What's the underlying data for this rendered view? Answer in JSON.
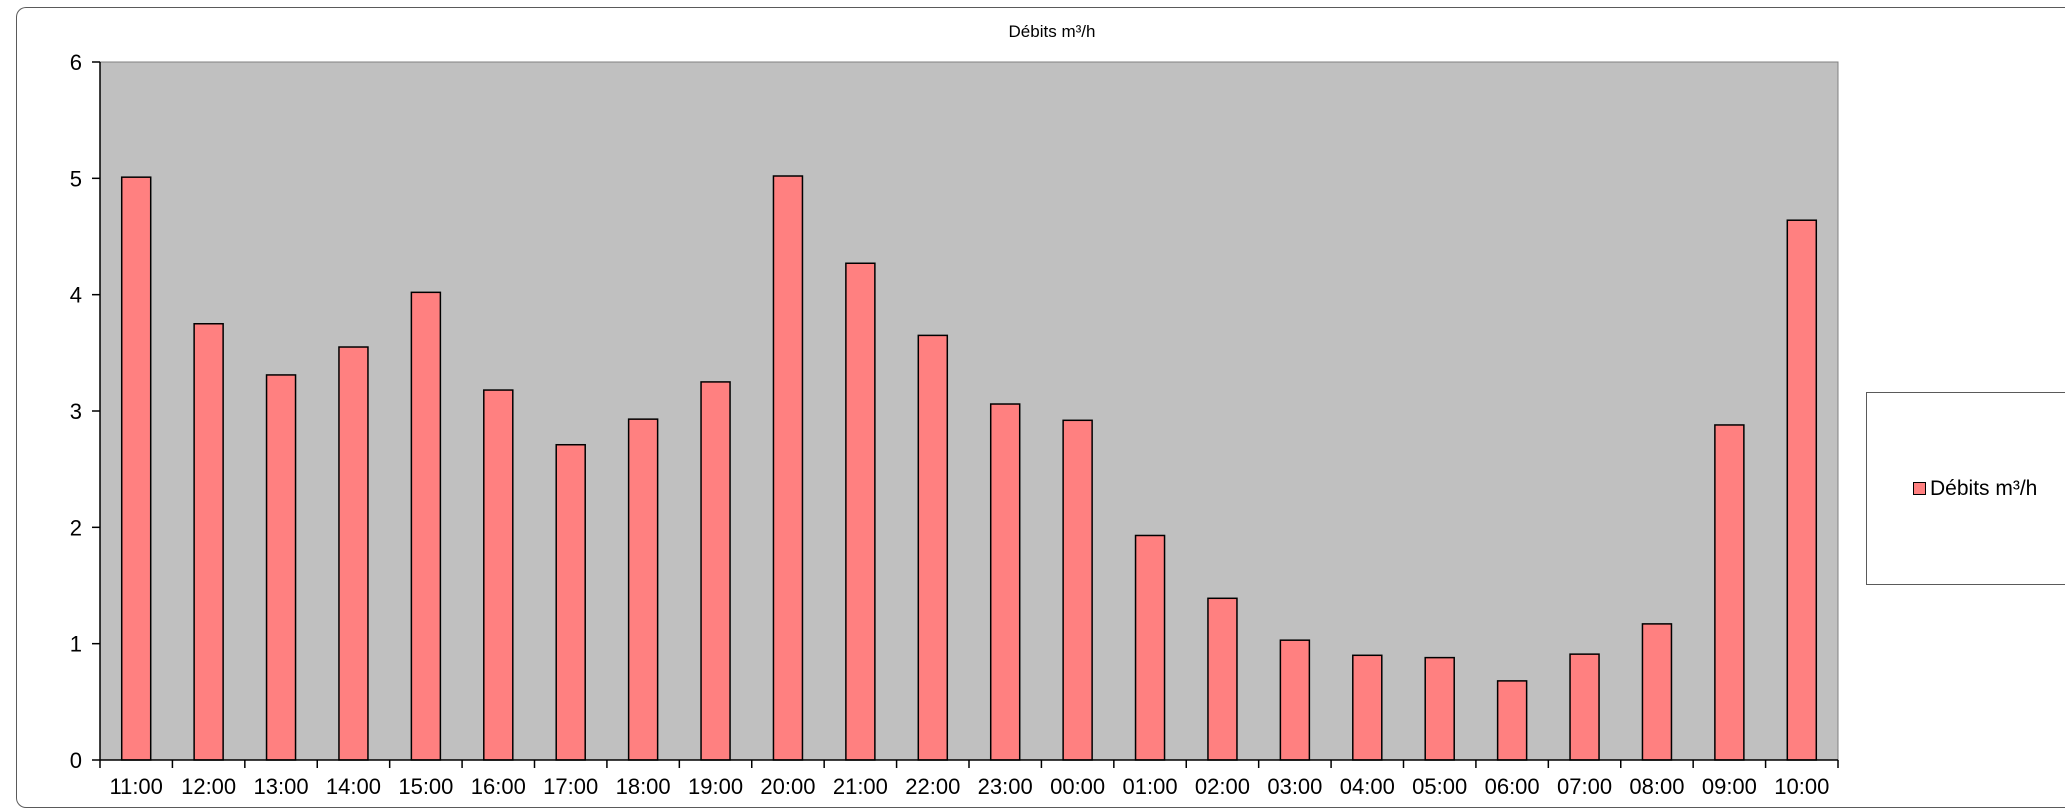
{
  "colors": {
    "plot_bg": "#c0c0c0",
    "bar_fill": "#ff8080",
    "bar_stroke": "#000000"
  },
  "chart_data": {
    "type": "bar",
    "title": "Débits m³/h",
    "xlabel": "",
    "ylabel": "",
    "ylim": [
      0,
      6
    ],
    "y_ticks": [
      "0",
      "1",
      "2",
      "3",
      "4",
      "5",
      "6"
    ],
    "grid": false,
    "legend_position": "right",
    "categories": [
      "11:00",
      "12:00",
      "13:00",
      "14:00",
      "15:00",
      "16:00",
      "17:00",
      "18:00",
      "19:00",
      "20:00",
      "21:00",
      "22:00",
      "23:00",
      "00:00",
      "01:00",
      "02:00",
      "03:00",
      "04:00",
      "05:00",
      "06:00",
      "07:00",
      "08:00",
      "09:00",
      "10:00"
    ],
    "series": [
      {
        "name": "Débits m³/h",
        "values": [
          5.01,
          3.75,
          3.31,
          3.55,
          4.02,
          3.18,
          2.71,
          2.93,
          3.25,
          5.02,
          4.27,
          3.65,
          3.06,
          2.92,
          1.93,
          1.39,
          1.03,
          0.9,
          0.88,
          0.68,
          0.91,
          1.17,
          2.88,
          4.64
        ]
      }
    ]
  }
}
